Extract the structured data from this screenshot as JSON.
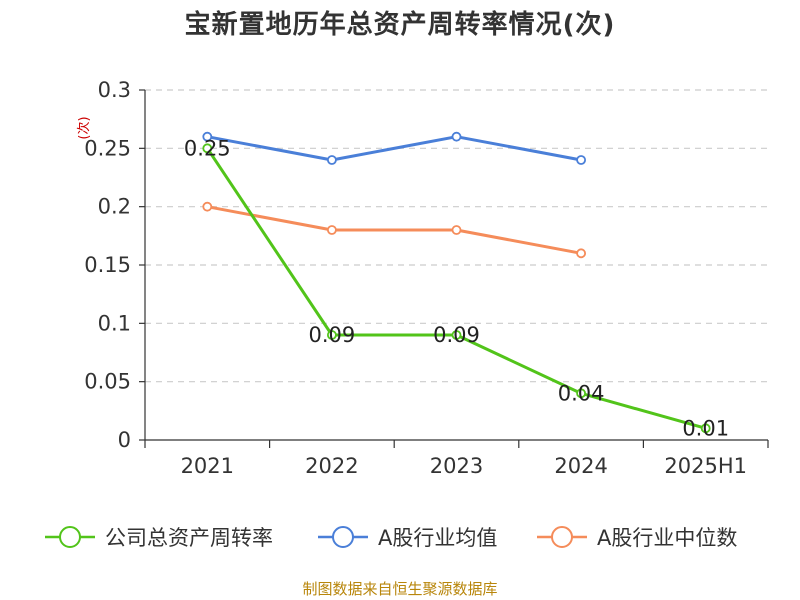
{
  "chart_data": {
    "type": "line",
    "title": "宝新置地历年总资产周转率情况(次)",
    "ylabel": "(次)",
    "xlabel": "",
    "categories": [
      "2021",
      "2022",
      "2023",
      "2024",
      "2025H1"
    ],
    "ylim": [
      0,
      0.3
    ],
    "yticks": [
      "0",
      "0.05",
      "0.1",
      "0.15",
      "0.2",
      "0.25",
      "0.3"
    ],
    "grid": true,
    "legend_position": "bottom",
    "series": [
      {
        "name": "公司总资产周转率",
        "color": "#52c41a",
        "values": [
          0.25,
          0.09,
          0.09,
          0.04,
          0.01
        ],
        "show_labels": true
      },
      {
        "name": "A股行业均值",
        "color": "#4a7fd8",
        "values": [
          0.26,
          0.24,
          0.26,
          0.24,
          null
        ],
        "show_labels": false
      },
      {
        "name": "A股行业中位数",
        "color": "#f58c5a",
        "values": [
          0.2,
          0.18,
          0.18,
          0.16,
          null
        ],
        "show_labels": false
      }
    ],
    "data_labels": [
      "0.25",
      "0.09",
      "0.09",
      "0.04",
      "0.01"
    ]
  },
  "source": "制图数据来自恒生聚源数据库"
}
